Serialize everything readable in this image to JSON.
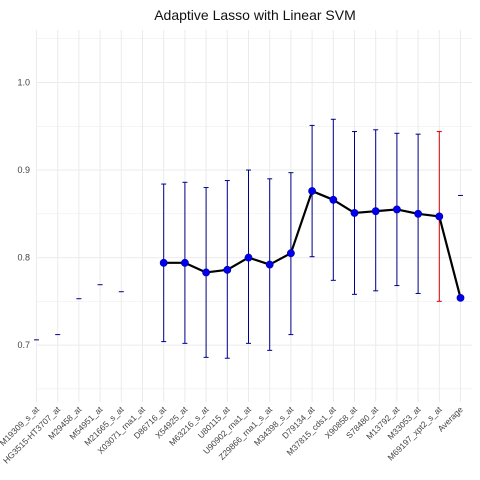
{
  "chart_data": {
    "type": "line",
    "title": "Adaptive Lasso  with Linear SVM",
    "xlabel": "",
    "ylabel": "",
    "ylim": [
      0.635,
      1.06
    ],
    "yticks": [
      0.7,
      0.8,
      0.9,
      1.0
    ],
    "ytick_labels": [
      "0.7",
      "0.8",
      "0.9",
      "1.0"
    ],
    "grid": true,
    "categories": [
      "M19309_s_at",
      "HG3515-HT3707_at",
      "M29458_at",
      "M54951_at",
      "M21665_s_at",
      "X03071_rna1_at",
      "D86716_at",
      "X54925_at",
      "M63216_s_at",
      "U80115_at",
      "U90902_rna1_at",
      "Z29866_rna1_s_at",
      "M34398_s_at",
      "D79134_at",
      "M37815_cds1_at",
      "X90858_at",
      "S78480_at",
      "M13792_at",
      "M33053_at",
      "M69197_xpt2_s_at",
      "Average"
    ],
    "series": [
      {
        "values": [
          0.706,
          0.712,
          0.753,
          0.769,
          0.761,
          null,
          0.794,
          0.794,
          0.783,
          0.786,
          0.8,
          0.792,
          0.805,
          0.876,
          0.866,
          0.851,
          0.853,
          0.855,
          0.85,
          0.847,
          0.754
        ],
        "lower": [
          null,
          null,
          null,
          null,
          null,
          null,
          0.704,
          0.702,
          0.686,
          0.685,
          0.702,
          0.694,
          0.712,
          0.801,
          0.774,
          0.758,
          0.762,
          0.768,
          0.759,
          0.75,
          0.754
        ],
        "upper": [
          null,
          null,
          null,
          null,
          null,
          null,
          0.884,
          0.886,
          0.88,
          0.888,
          0.9,
          0.89,
          0.897,
          0.951,
          0.958,
          0.944,
          0.946,
          0.942,
          0.941,
          0.944,
          0.871
        ],
        "connected_range": [
          6,
          20
        ]
      }
    ],
    "colors": {
      "line": "#000000",
      "point": "#0000ee",
      "errorbar": "#00008b",
      "highlight": "#dd0000",
      "grid": "#ebebeb"
    }
  }
}
